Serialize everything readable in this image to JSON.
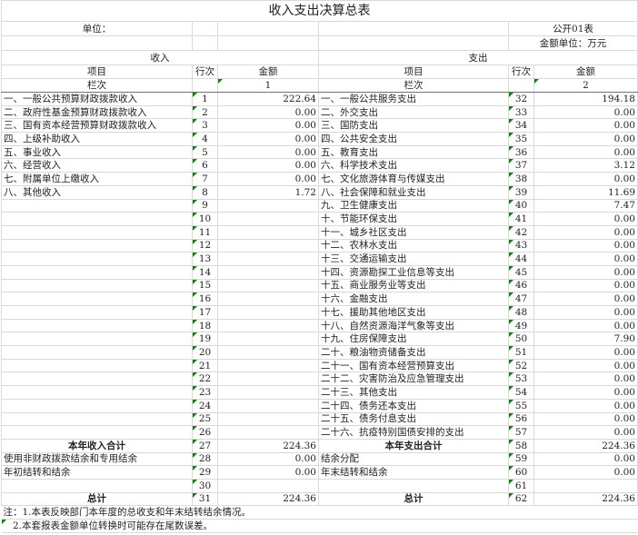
{
  "title": "收入支出决算总表",
  "unit_label": "单位：",
  "form_code": "公开01表",
  "amount_unit": "金额单位：万元",
  "sections": {
    "income": "收入",
    "expense": "支出"
  },
  "headers": {
    "item": "项目",
    "line": "行次",
    "amount": "金额",
    "column_no": "栏次",
    "income_col": "1",
    "expense_col": "2"
  },
  "rows": [
    {
      "income_item": "一、一般公共预算财政拨款收入",
      "income_line": "1",
      "income_amount": "222.64",
      "expense_item": "一、一般公共服务支出",
      "expense_line": "32",
      "expense_amount": "194.18"
    },
    {
      "income_item": "二、政府性基金预算财政拨款收入",
      "income_line": "2",
      "income_amount": "0.00",
      "expense_item": "二、外交支出",
      "expense_line": "33",
      "expense_amount": "0.00"
    },
    {
      "income_item": "三、国有资本经营预算财政拨款收入",
      "income_line": "3",
      "income_amount": "0.00",
      "expense_item": "三、国防支出",
      "expense_line": "34",
      "expense_amount": "0.00"
    },
    {
      "income_item": "四、上级补助收入",
      "income_line": "4",
      "income_amount": "0.00",
      "expense_item": "四、公共安全支出",
      "expense_line": "35",
      "expense_amount": "0.00"
    },
    {
      "income_item": "五、事业收入",
      "income_line": "5",
      "income_amount": "0.00",
      "expense_item": "五、教育支出",
      "expense_line": "36",
      "expense_amount": "0.00"
    },
    {
      "income_item": "六、经营收入",
      "income_line": "6",
      "income_amount": "0.00",
      "expense_item": "六、科学技术支出",
      "expense_line": "37",
      "expense_amount": "3.12"
    },
    {
      "income_item": "七、附属单位上缴收入",
      "income_line": "7",
      "income_amount": "0.00",
      "expense_item": "七、文化旅游体育与传媒支出",
      "expense_line": "38",
      "expense_amount": "0.00"
    },
    {
      "income_item": "八、其他收入",
      "income_line": "8",
      "income_amount": "1.72",
      "expense_item": "八、社会保障和就业支出",
      "expense_line": "39",
      "expense_amount": "11.69"
    },
    {
      "income_item": "",
      "income_line": "9",
      "income_amount": "",
      "expense_item": "九、卫生健康支出",
      "expense_line": "40",
      "expense_amount": "7.47"
    },
    {
      "income_item": "",
      "income_line": "10",
      "income_amount": "",
      "expense_item": "十、节能环保支出",
      "expense_line": "41",
      "expense_amount": "0.00"
    },
    {
      "income_item": "",
      "income_line": "11",
      "income_amount": "",
      "expense_item": "十一、城乡社区支出",
      "expense_line": "42",
      "expense_amount": "0.00"
    },
    {
      "income_item": "",
      "income_line": "12",
      "income_amount": "",
      "expense_item": "十二、农林水支出",
      "expense_line": "43",
      "expense_amount": "0.00"
    },
    {
      "income_item": "",
      "income_line": "13",
      "income_amount": "",
      "expense_item": "十三、交通运输支出",
      "expense_line": "44",
      "expense_amount": "0.00"
    },
    {
      "income_item": "",
      "income_line": "14",
      "income_amount": "",
      "expense_item": "十四、资源勘探工业信息等支出",
      "expense_line": "45",
      "expense_amount": "0.00"
    },
    {
      "income_item": "",
      "income_line": "15",
      "income_amount": "",
      "expense_item": "十五、商业服务业等支出",
      "expense_line": "46",
      "expense_amount": "0.00"
    },
    {
      "income_item": "",
      "income_line": "16",
      "income_amount": "",
      "expense_item": "十六、金融支出",
      "expense_line": "47",
      "expense_amount": "0.00"
    },
    {
      "income_item": "",
      "income_line": "17",
      "income_amount": "",
      "expense_item": "十七、援助其他地区支出",
      "expense_line": "48",
      "expense_amount": "0.00"
    },
    {
      "income_item": "",
      "income_line": "18",
      "income_amount": "",
      "expense_item": "十八、自然资源海洋气象等支出",
      "expense_line": "49",
      "expense_amount": "0.00"
    },
    {
      "income_item": "",
      "income_line": "19",
      "income_amount": "",
      "expense_item": "十九、住房保障支出",
      "expense_line": "50",
      "expense_amount": "7.90"
    },
    {
      "income_item": "",
      "income_line": "20",
      "income_amount": "",
      "expense_item": "二十、粮油物资储备支出",
      "expense_line": "51",
      "expense_amount": "0.00"
    },
    {
      "income_item": "",
      "income_line": "21",
      "income_amount": "",
      "expense_item": "二十一、国有资本经营预算支出",
      "expense_line": "52",
      "expense_amount": "0.00"
    },
    {
      "income_item": "",
      "income_line": "22",
      "income_amount": "",
      "expense_item": "二十二、灾害防治及应急管理支出",
      "expense_line": "53",
      "expense_amount": "0.00"
    },
    {
      "income_item": "",
      "income_line": "23",
      "income_amount": "",
      "expense_item": "二十三、其他支出",
      "expense_line": "54",
      "expense_amount": "0.00"
    },
    {
      "income_item": "",
      "income_line": "24",
      "income_amount": "",
      "expense_item": "二十四、债务还本支出",
      "expense_line": "55",
      "expense_amount": "0.00"
    },
    {
      "income_item": "",
      "income_line": "25",
      "income_amount": "",
      "expense_item": "二十五、债务付息支出",
      "expense_line": "56",
      "expense_amount": "0.00"
    },
    {
      "income_item": "",
      "income_line": "26",
      "income_amount": "",
      "expense_item": "二十六、抗疫特别国债安排的支出",
      "expense_line": "57",
      "expense_amount": "0.00"
    },
    {
      "income_item": "本年收入合计",
      "income_line": "27",
      "income_amount": "224.36",
      "expense_item": "本年支出合计",
      "expense_line": "58",
      "expense_amount": "224.36"
    },
    {
      "income_item": "使用非财政拨款结余和专用结余",
      "income_line": "28",
      "income_amount": "0.00",
      "expense_item": "结余分配",
      "expense_line": "59",
      "expense_amount": "0.00"
    },
    {
      "income_item": "年初结转和结余",
      "income_line": "29",
      "income_amount": "0.00",
      "expense_item": "年末结转和结余",
      "expense_line": "60",
      "expense_amount": "0.00"
    },
    {
      "income_item": "",
      "income_line": "30",
      "income_amount": "",
      "expense_item": "",
      "expense_line": "61",
      "expense_amount": ""
    },
    {
      "income_item": "总计",
      "income_line": "31",
      "income_amount": "224.36",
      "expense_item": "总计",
      "expense_line": "62",
      "expense_amount": "224.36"
    }
  ],
  "notes": [
    "注：1.本表反映部门本年度的总收支和年末结转结余情况。",
    "　2.本套报表金额单位转换时可能存在尾数误差。"
  ],
  "colors": {
    "grid": "#d9d9d9",
    "marker": "#1a7a1a"
  }
}
